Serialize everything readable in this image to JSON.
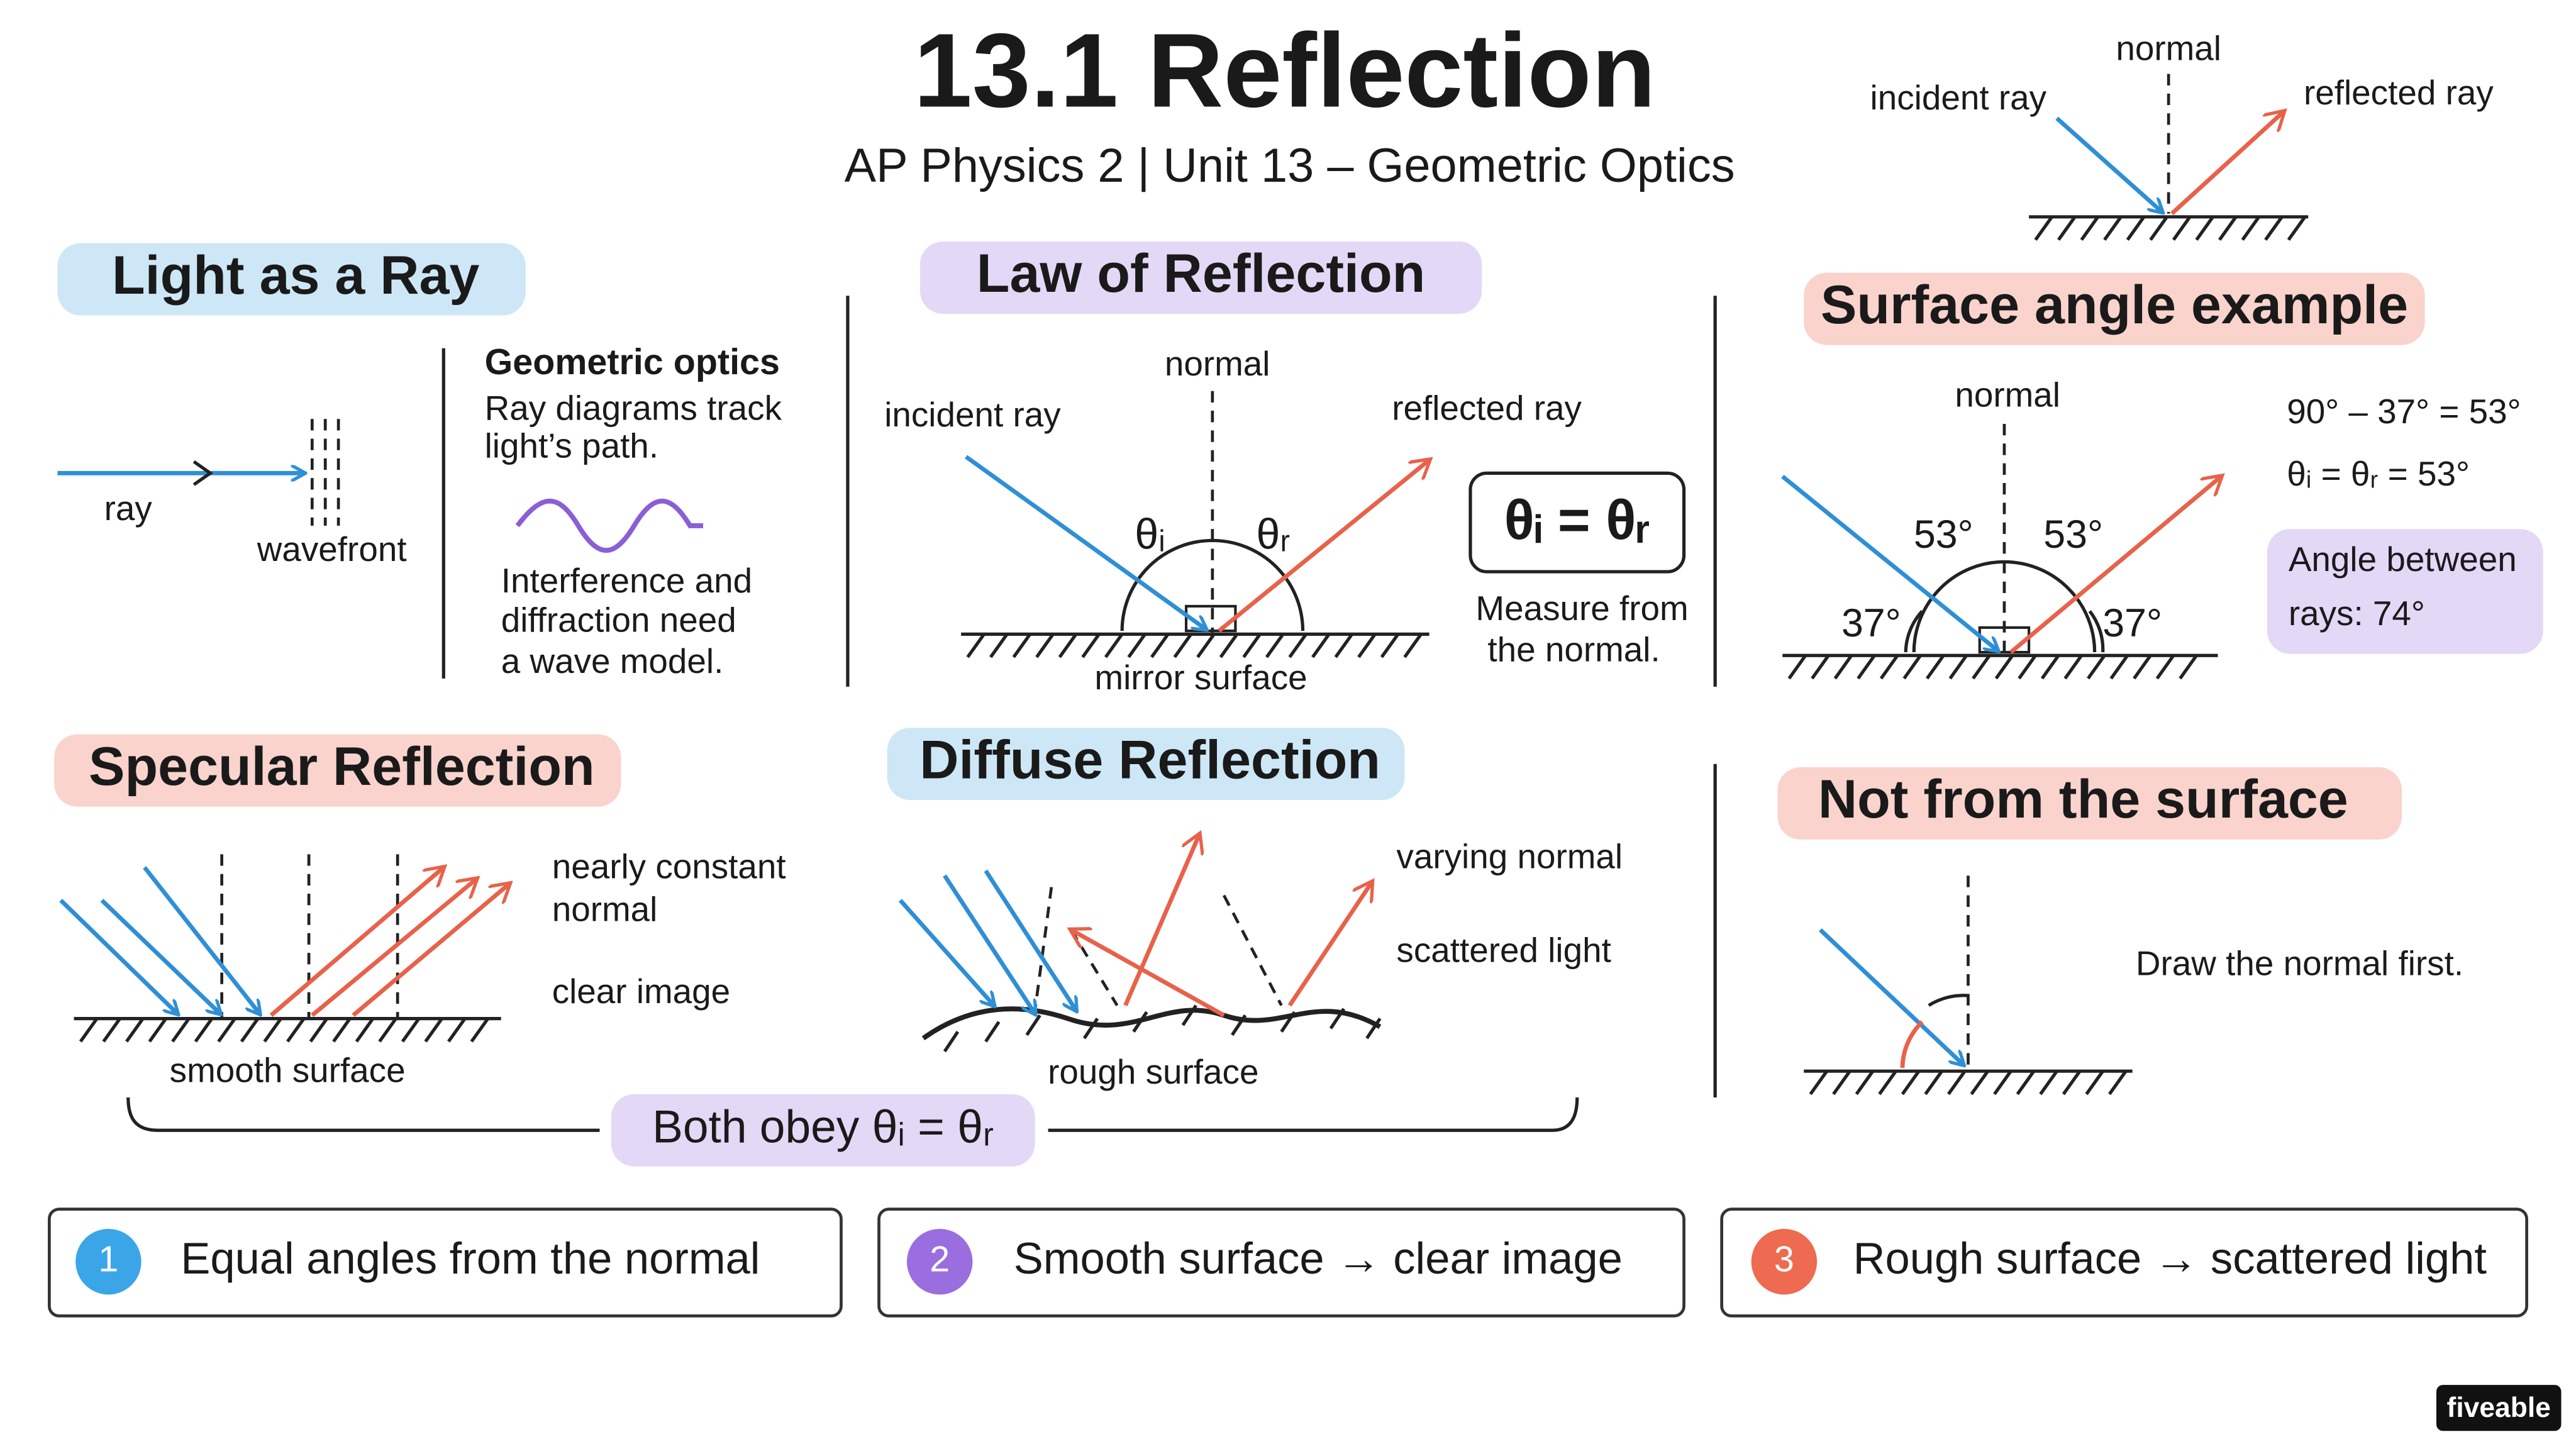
{
  "header": {
    "title": "13.1 Reflection",
    "subtitle": "AP Physics 2  |  Unit 13 – Geometric Optics"
  },
  "top_diagram": {
    "normal": "normal",
    "incident": "incident ray",
    "reflected": "reflected ray"
  },
  "light_as_ray": {
    "title": "Light as a Ray",
    "ray": "ray",
    "wavefront": "wavefront",
    "heading": "Geometric optics",
    "lines": [
      "Ray diagrams track",
      "light’s path.",
      "Interference and",
      "diffraction need",
      "a wave model."
    ]
  },
  "law": {
    "title": "Law of Reflection",
    "normal": "normal",
    "incident": "incident ray",
    "reflected": "reflected ray",
    "theta_i": "θᵢ",
    "theta_r": "θᵣ",
    "surface": "mirror surface",
    "equation": "θᵢ = θᵣ",
    "note": [
      "Measure from",
      "the normal."
    ]
  },
  "surface_angle": {
    "title": "Surface angle example",
    "normal": "normal",
    "angle_i": "53°",
    "angle_r": "53°",
    "surface_left": "37°",
    "surface_right": "37°",
    "calc": [
      "90° – 37° = 53°",
      "θᵢ = θᵣ = 53°"
    ],
    "box": [
      "Angle between",
      "rays: 74°"
    ]
  },
  "specular": {
    "title": "Specular Reflection",
    "notes": [
      "nearly constant",
      "normal",
      "clear image"
    ],
    "surface": "smooth surface"
  },
  "diffuse": {
    "title": "Diffuse Reflection",
    "notes": [
      "varying normal",
      "scattered light"
    ],
    "surface": "rough surface"
  },
  "both": "Both obey θᵢ = θᵣ",
  "not_surface": {
    "title": "Not from the surface",
    "note": "Draw the normal first."
  },
  "cards": [
    {
      "number": "1",
      "text": "Equal angles from the normal"
    },
    {
      "number": "2",
      "text": "Smooth surface → clear image"
    },
    {
      "number": "3",
      "text": "Rough surface → scattered light"
    }
  ],
  "brand": "fiveable"
}
